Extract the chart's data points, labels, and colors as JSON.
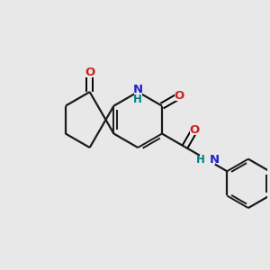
{
  "background_color": "#e8e8e8",
  "bond_color": "#1a1a1a",
  "N_color": "#2222cc",
  "O_color": "#cc2222",
  "NH_color": "#008080",
  "figsize": [
    3.0,
    3.0
  ],
  "dpi": 100,
  "xlim": [
    0,
    10
  ],
  "ylim": [
    0,
    10
  ]
}
